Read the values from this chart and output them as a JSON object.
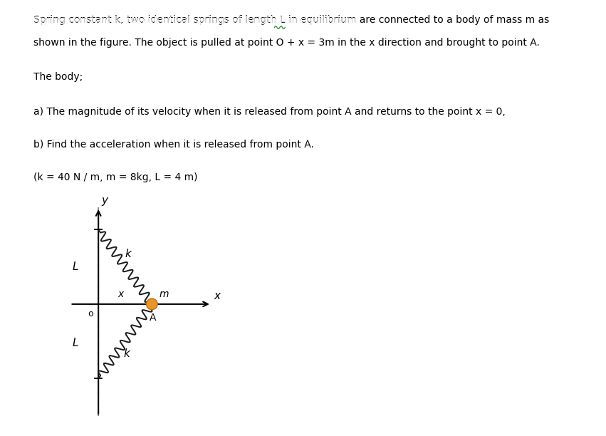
{
  "bg_color": "#fdfdf0",
  "fig_bg": "#ffffff",
  "line1": "Spring constant k, two identical springs of length L in equilibrium are connected to a body of mass m as",
  "line2": "shown in the figure. The object is pulled at point O + x = 3m in the x direction and brought to point A.",
  "body_text": "The body;",
  "part_a": "a) The magnitude of its velocity when it is released from point A and returns to the point x = 0,",
  "part_b": "b) Find the acceleration when it is released from point A.",
  "params": "(k = 40 N / m, m = 8kg, L = 4 m)",
  "spring_color": "#1a1a1a",
  "mass_color": "#e8952a",
  "mass_edge_color": "#c07010",
  "dashed_color": "#666666",
  "text_fontsize": 10.0,
  "are_underline_color": "#228B22"
}
